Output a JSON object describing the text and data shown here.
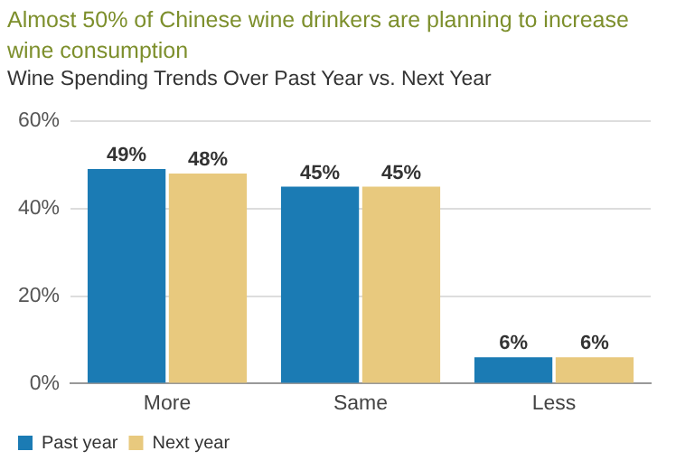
{
  "chart_data": {
    "type": "bar",
    "title": "Almost 50% of Chinese wine drinkers are planning to increase wine consumption",
    "subtitle": "Wine Spending Trends Over Past Year vs. Next Year",
    "categories": [
      "More",
      "Same",
      "Less"
    ],
    "series": [
      {
        "name": "Past year",
        "color": "#1b7bb4",
        "values": [
          49,
          45,
          6
        ],
        "value_labels": [
          "49%",
          "45%",
          "6%"
        ]
      },
      {
        "name": "Next year",
        "color": "#e8c97e",
        "values": [
          48,
          45,
          6
        ],
        "value_labels": [
          "48%",
          "45%",
          "6%"
        ]
      }
    ],
    "ylim": [
      0,
      60
    ],
    "yticks": [
      {
        "value": 0,
        "label": "0%"
      },
      {
        "value": 20,
        "label": "20%"
      },
      {
        "value": 40,
        "label": "40%"
      },
      {
        "value": 60,
        "label": "60%"
      }
    ],
    "grid": "y",
    "legend": "bottom left"
  }
}
